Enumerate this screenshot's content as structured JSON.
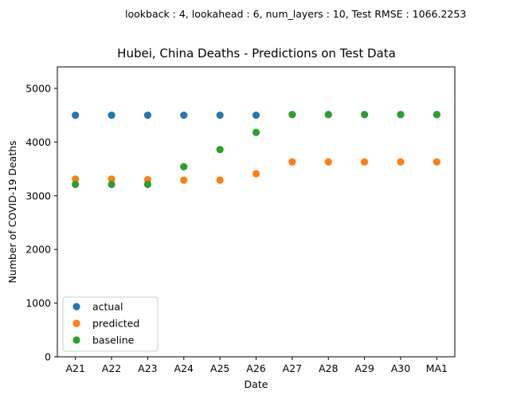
{
  "figure": {
    "note": "lookback : 4, lookahead : 6, num_layers : 10, Test RMSE : 1066.2253"
  },
  "chart_data": {
    "type": "scatter",
    "title": "Hubei, China Deaths - Predictions on Test Data",
    "xlabel": "Date",
    "ylabel": "Number of COVID-19 Deaths",
    "categories": [
      "A21",
      "A22",
      "A23",
      "A24",
      "A25",
      "A26",
      "A27",
      "A28",
      "A29",
      "A30",
      "MA1"
    ],
    "ylim": [
      0,
      5400
    ],
    "yticks": [
      0,
      1000,
      2000,
      3000,
      4000,
      5000
    ],
    "grid": false,
    "legend_position": "lower-left",
    "series": [
      {
        "name": "actual",
        "color": "#1f77b4",
        "values": [
          4500,
          4500,
          4500,
          4500,
          4500,
          4500,
          4512,
          4512,
          4512,
          4512,
          4512
        ]
      },
      {
        "name": "predicted",
        "color": "#ff7f0e",
        "values": [
          3310,
          3310,
          3300,
          3290,
          3290,
          3410,
          3630,
          3630,
          3630,
          3630,
          3630
        ]
      },
      {
        "name": "baseline",
        "color": "#2ca02c",
        "values": [
          3212,
          3212,
          3212,
          3540,
          3860,
          4180,
          4512,
          4512,
          4512,
          4512,
          4512
        ]
      }
    ]
  }
}
